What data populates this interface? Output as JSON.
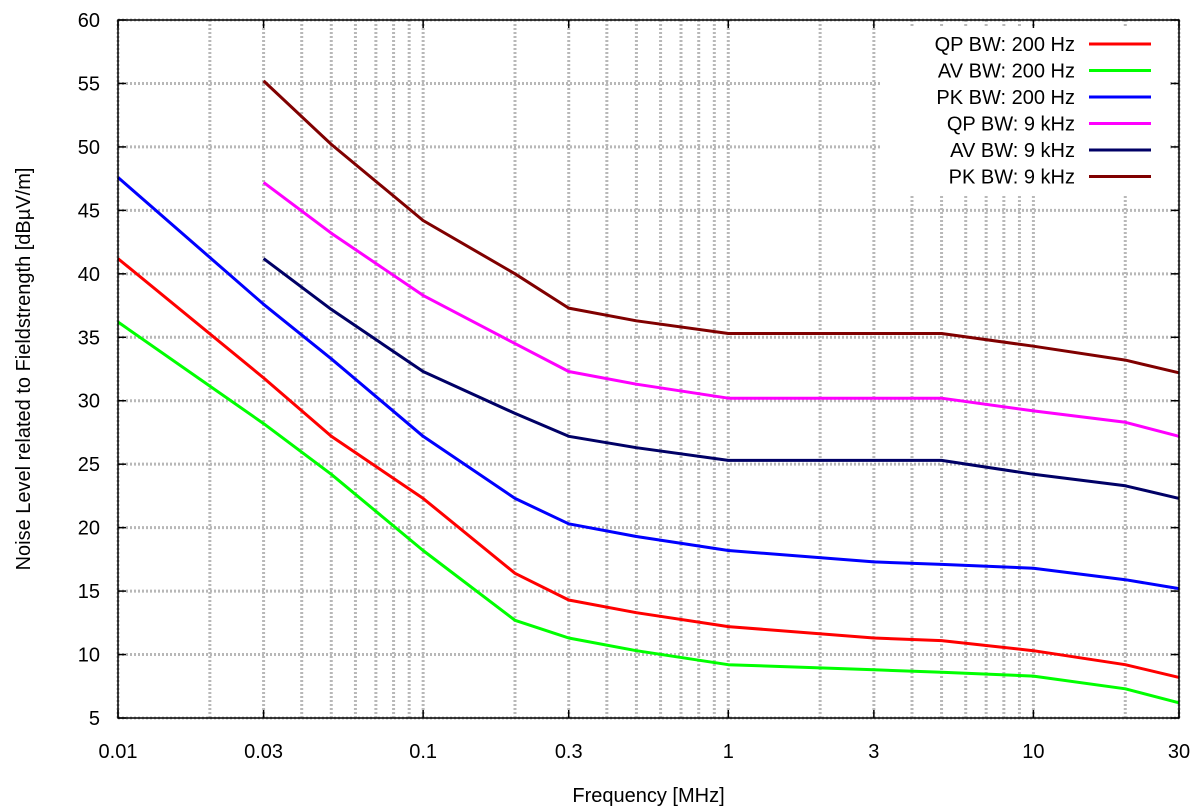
{
  "chart_data": {
    "type": "line",
    "xlabel": "Frequency [MHz]",
    "ylabel": "Noise Level related to Fieldstrength [dBµV/m]",
    "xscale": "log",
    "xlim": [
      0.01,
      30
    ],
    "ylim": [
      5,
      60
    ],
    "grid": true,
    "legend_position": "top-right",
    "xticks": [
      0.01,
      0.03,
      0.1,
      0.3,
      1,
      3,
      10,
      30
    ],
    "xtick_labels": [
      "0.01",
      "0.03",
      "0.1",
      "0.3",
      "1",
      "3",
      "10",
      "30"
    ],
    "yticks": [
      5,
      10,
      15,
      20,
      25,
      30,
      35,
      40,
      45,
      50,
      55,
      60
    ],
    "ytick_labels": [
      "5",
      "10",
      "15",
      "20",
      "25",
      "30",
      "35",
      "40",
      "45",
      "50",
      "55",
      "60"
    ],
    "series": [
      {
        "name": "QP BW: 200 Hz",
        "color": "#ff0000",
        "points": [
          [
            0.01,
            41.2
          ],
          [
            0.03,
            31.8
          ],
          [
            0.05,
            27.2
          ],
          [
            0.1,
            22.3
          ],
          [
            0.2,
            16.4
          ],
          [
            0.3,
            14.3
          ],
          [
            0.5,
            13.3
          ],
          [
            1,
            12.2
          ],
          [
            3,
            11.3
          ],
          [
            5,
            11.1
          ],
          [
            10,
            10.3
          ],
          [
            20,
            9.2
          ],
          [
            30,
            8.2
          ]
        ]
      },
      {
        "name": "AV BW: 200 Hz",
        "color": "#00ff00",
        "points": [
          [
            0.01,
            36.2
          ],
          [
            0.03,
            28.2
          ],
          [
            0.05,
            24.2
          ],
          [
            0.1,
            18.2
          ],
          [
            0.2,
            12.7
          ],
          [
            0.3,
            11.3
          ],
          [
            0.5,
            10.3
          ],
          [
            1,
            9.2
          ],
          [
            3,
            8.8
          ],
          [
            5,
            8.6
          ],
          [
            10,
            8.3
          ],
          [
            20,
            7.3
          ],
          [
            30,
            6.2
          ]
        ]
      },
      {
        "name": "PK BW: 200 Hz",
        "color": "#0000ff",
        "points": [
          [
            0.01,
            47.6
          ],
          [
            0.03,
            37.6
          ],
          [
            0.05,
            33.3
          ],
          [
            0.1,
            27.2
          ],
          [
            0.2,
            22.3
          ],
          [
            0.3,
            20.3
          ],
          [
            0.5,
            19.3
          ],
          [
            1,
            18.2
          ],
          [
            3,
            17.3
          ],
          [
            5,
            17.1
          ],
          [
            10,
            16.8
          ],
          [
            20,
            15.9
          ],
          [
            30,
            15.2
          ]
        ]
      },
      {
        "name": "QP BW: 9 kHz",
        "color": "#ff00ff",
        "points": [
          [
            0.03,
            47.2
          ],
          [
            0.05,
            43.2
          ],
          [
            0.1,
            38.3
          ],
          [
            0.2,
            34.5
          ],
          [
            0.3,
            32.3
          ],
          [
            0.5,
            31.3
          ],
          [
            1,
            30.2
          ],
          [
            3,
            30.2
          ],
          [
            5,
            30.2
          ],
          [
            10,
            29.2
          ],
          [
            20,
            28.3
          ],
          [
            30,
            27.2
          ]
        ]
      },
      {
        "name": "AV BW: 9 kHz",
        "color": "#000066",
        "points": [
          [
            0.03,
            41.2
          ],
          [
            0.05,
            37.2
          ],
          [
            0.1,
            32.3
          ],
          [
            0.2,
            29.0
          ],
          [
            0.3,
            27.2
          ],
          [
            0.5,
            26.3
          ],
          [
            1,
            25.3
          ],
          [
            3,
            25.3
          ],
          [
            5,
            25.3
          ],
          [
            10,
            24.2
          ],
          [
            20,
            23.3
          ],
          [
            30,
            22.3
          ]
        ]
      },
      {
        "name": "PK BW: 9 kHz",
        "color": "#800000",
        "points": [
          [
            0.03,
            55.2
          ],
          [
            0.05,
            50.2
          ],
          [
            0.1,
            44.2
          ],
          [
            0.2,
            40.0
          ],
          [
            0.3,
            37.3
          ],
          [
            0.5,
            36.3
          ],
          [
            1,
            35.3
          ],
          [
            3,
            35.3
          ],
          [
            5,
            35.3
          ],
          [
            10,
            34.3
          ],
          [
            20,
            33.2
          ],
          [
            30,
            32.2
          ]
        ]
      }
    ]
  }
}
